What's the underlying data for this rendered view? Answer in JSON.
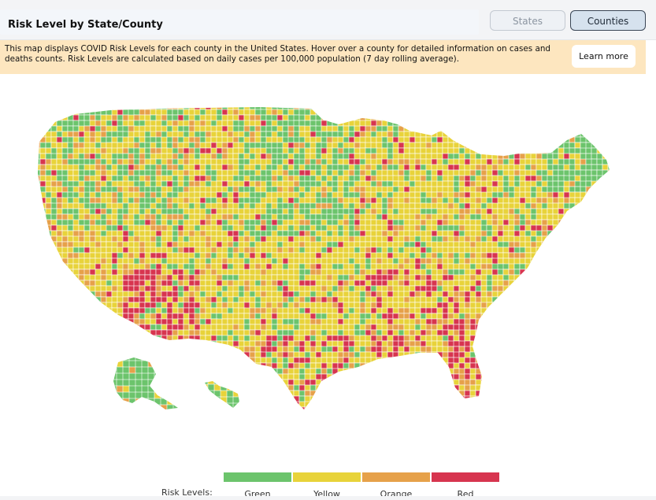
{
  "header": {
    "title": "Risk Level by State/County",
    "states_button": "States",
    "counties_button": "Counties"
  },
  "notice": {
    "text": "This map displays COVID Risk Levels for each county in the United States. Hover over a county for detailed information on cases and deaths counts. Risk Levels are calculated based on daily cases per 100,000 population (7 day rolling average).",
    "learn_more": "Learn more"
  },
  "map": {
    "selected_view": "Counties",
    "colors": {
      "green": "#6cc46c",
      "yellow": "#e8d33a",
      "orange": "#e6a14a",
      "red": "#d7354f"
    }
  },
  "legend": {
    "title": "Risk Levels:",
    "items": [
      {
        "label": "Green",
        "color": "#6cc46c"
      },
      {
        "label": "Yellow",
        "color": "#e8d33a"
      },
      {
        "label": "Orange",
        "color": "#e6a14a"
      },
      {
        "label": "Red",
        "color": "#d7354f"
      }
    ]
  }
}
